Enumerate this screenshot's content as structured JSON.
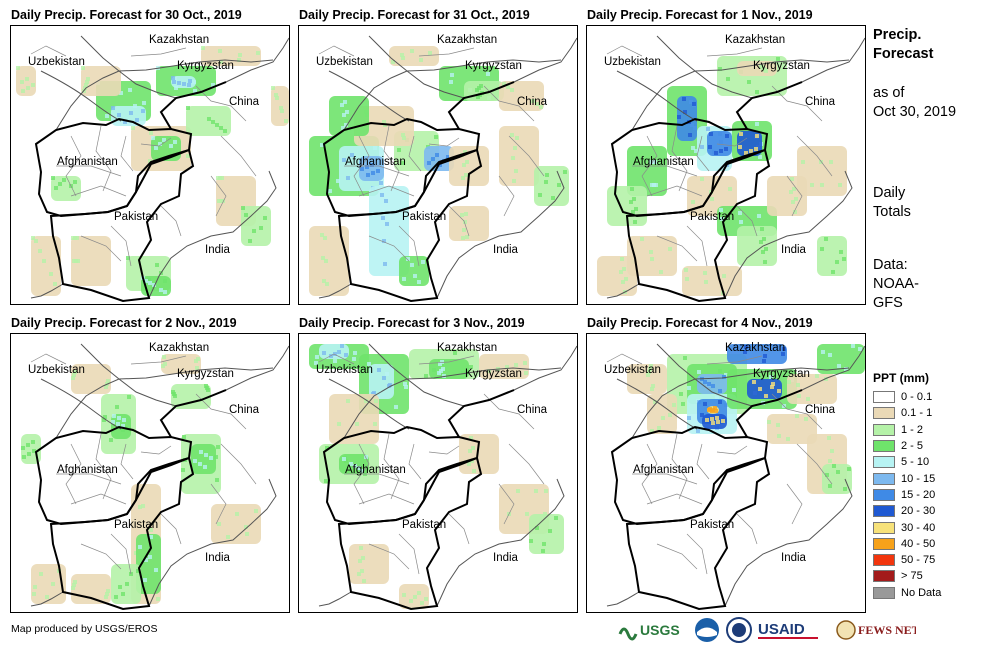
{
  "panels": [
    {
      "title": "Daily Precip. Forecast for 30 Oct., 2019"
    },
    {
      "title": "Daily Precip. Forecast for 31 Oct., 2019"
    },
    {
      "title": "Daily Precip. Forecast for 1 Nov., 2019"
    },
    {
      "title": "Daily Precip. Forecast for 2 Nov., 2019"
    },
    {
      "title": "Daily Precip. Forecast for 3 Nov., 2019"
    },
    {
      "title": "Daily Precip. Forecast for 4 Nov., 2019"
    }
  ],
  "map_labels": {
    "uzbekistan": "Uzbekistan",
    "kazakhstan": "Kazakhstan",
    "kyrgyzstan": "Kyrgyzstan",
    "china": "China",
    "afghanistan": "Afghanistan",
    "pakistan": "Pakistan",
    "india": "India"
  },
  "side": {
    "line1": "Precip.",
    "line2": "Forecast",
    "line3": "as of",
    "line4": "Oct 30, 2019",
    "line5": "Daily",
    "line6": "Totals",
    "line7": "Data:",
    "line8": "NOAA-",
    "line9": "GFS"
  },
  "legend": {
    "title": "PPT (mm)",
    "items": [
      {
        "label": "0 - 0.1",
        "color": "#ffffff"
      },
      {
        "label": "0.1 - 1",
        "color": "#ead9b6"
      },
      {
        "label": "1 - 2",
        "color": "#b5f2a8"
      },
      {
        "label": "2 - 5",
        "color": "#6fe36b"
      },
      {
        "label": "5 - 10",
        "color": "#b7f3f3"
      },
      {
        "label": "10 - 15",
        "color": "#7db9ef"
      },
      {
        "label": "15 - 20",
        "color": "#3f8ae6"
      },
      {
        "label": "20 - 30",
        "color": "#1f59d2"
      },
      {
        "label": "30 - 40",
        "color": "#f7e27a"
      },
      {
        "label": "40 - 50",
        "color": "#f7a21a"
      },
      {
        "label": "50 - 75",
        "color": "#f2350d"
      },
      {
        "label": "> 75",
        "color": "#a31b1b"
      },
      {
        "label": "No Data",
        "color": "#999999"
      }
    ]
  },
  "credit": "Map produced by USGS/EROS",
  "logos": {
    "usgs": "USGS",
    "usaid": "USAID",
    "fewsnet": "FEWS NET"
  }
}
